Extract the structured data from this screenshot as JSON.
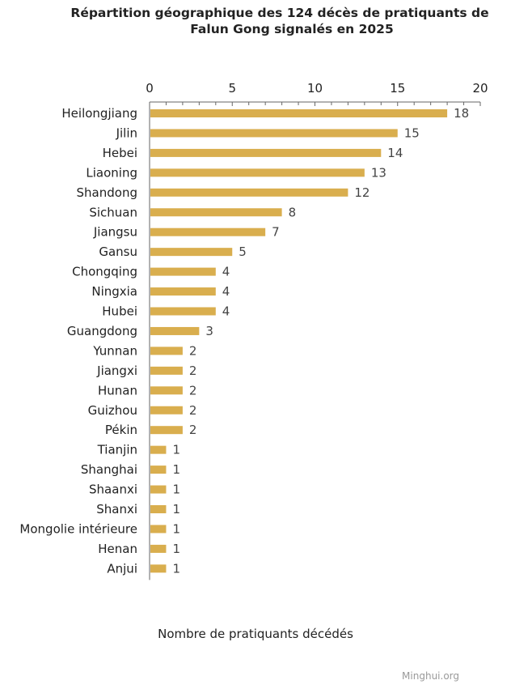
{
  "chart_data": {
    "type": "bar",
    "orientation": "horizontal",
    "title_line1": "Répartition géographique des 124 décès de pratiquants de",
    "title_line2": "Falun Gong signalés en 2025",
    "xlabel": "Nombre de pratiquants décédés",
    "ylabel": "",
    "xlim": [
      0,
      20
    ],
    "xticks": [
      0,
      5,
      10,
      15,
      20
    ],
    "axis_position": "top",
    "grid": false,
    "bar_color": "#D9AE4E",
    "categories": [
      "Heilongjiang",
      "Jilin",
      "Hebei",
      "Liaoning",
      "Shandong",
      "Sichuan",
      "Jiangsu",
      "Gansu",
      "Chongqing",
      "Ningxia",
      "Hubei",
      "Guangdong",
      "Yunnan",
      "Jiangxi",
      "Hunan",
      "Guizhou",
      "Pékin",
      "Tianjin",
      "Shanghai",
      "Shaanxi",
      "Shanxi",
      "Mongolie intérieure",
      "Henan",
      "Anjui"
    ],
    "values": [
      18,
      15,
      14,
      13,
      12,
      8,
      7,
      5,
      4,
      4,
      4,
      3,
      2,
      2,
      2,
      2,
      2,
      1,
      1,
      1,
      1,
      1,
      1,
      1
    ],
    "source": "Minghui.org"
  }
}
